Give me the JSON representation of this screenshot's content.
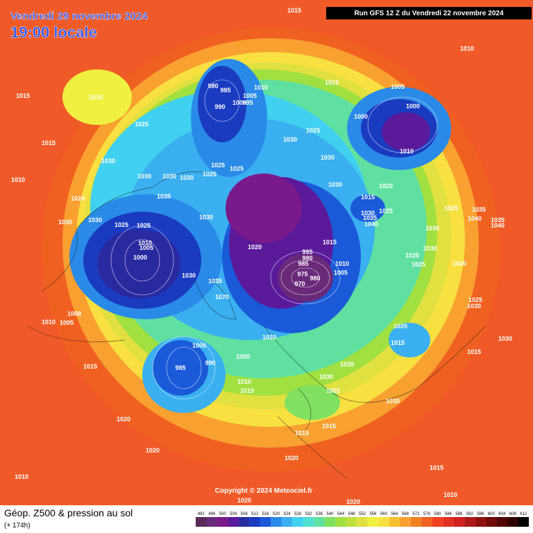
{
  "header": {
    "date": "Vendredi 29 novembre 2024",
    "time": "19:00 locale",
    "run": "Run GFS 12 Z du Vendredi 22 novembre 2024"
  },
  "footer": {
    "title": "Géop. Z500 & pression au sol",
    "subtitle": "(+ 174h)",
    "copyright": "Copyright © 2024 Meteociel.fr"
  },
  "colorbar": {
    "ticks": [
      492,
      496,
      500,
      504,
      508,
      512,
      516,
      520,
      524,
      528,
      532,
      536,
      540,
      544,
      548,
      552,
      556,
      560,
      564,
      568,
      572,
      576,
      580,
      584,
      588,
      592,
      596,
      600,
      604,
      608,
      612
    ],
    "colors": [
      "#5a2a5a",
      "#6a2a7a",
      "#7a1a8a",
      "#5a1a9a",
      "#2a2aa0",
      "#1a3ac0",
      "#1a5ad8",
      "#2a8ae8",
      "#3ab0f0",
      "#40d0f0",
      "#50e0d0",
      "#60e0a0",
      "#80e060",
      "#a0e040",
      "#c0e040",
      "#e0e040",
      "#f0f040",
      "#f8e040",
      "#f8c030",
      "#f8a030",
      "#f08020",
      "#f06020",
      "#f04020",
      "#e03020",
      "#d02020",
      "#b01818",
      "#901010",
      "#700808",
      "#500404",
      "#300000",
      "#000000"
    ]
  },
  "isobar_labels": [
    1015,
    1010,
    1015,
    1015,
    1025,
    980,
    985,
    1010,
    1005,
    995,
    1000,
    990,
    1015,
    1005,
    1000,
    1000,
    1025,
    1030,
    1010,
    1015,
    1030,
    1025,
    1025,
    1030,
    1030,
    1030,
    1030,
    1025,
    1010,
    1030,
    1020,
    1035,
    1020,
    1015,
    1025,
    1030,
    1035,
    1040,
    1025,
    1035,
    1040,
    1035,
    1040,
    1030,
    1030,
    1025,
    1025,
    1030,
    1030,
    1015,
    1020,
    1010,
    1005,
    995,
    990,
    985,
    1000,
    1010,
    1030,
    1025,
    1025,
    1030,
    975,
    980,
    970,
    1005,
    1030,
    1035,
    1070,
    1025,
    1030,
    1008,
    1010,
    1005,
    1020,
    1030,
    1020,
    1015,
    1015,
    1000,
    990,
    1000,
    985,
    1015,
    1035,
    1030,
    1010,
    1015,
    1025,
    1030,
    1020,
    1015,
    1015,
    1020,
    1020,
    1015,
    1010,
    1010,
    1020,
    1020
  ]
}
